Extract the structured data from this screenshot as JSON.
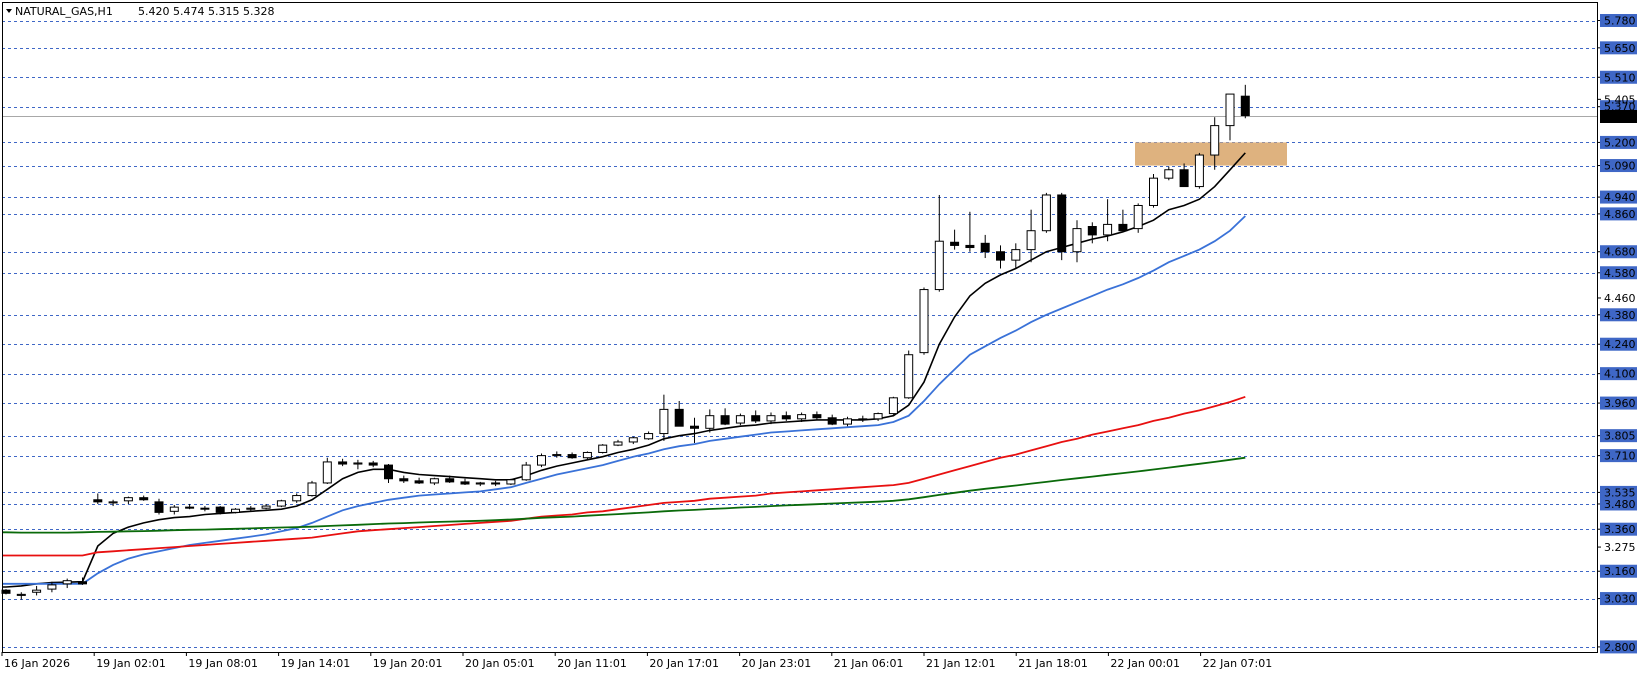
{
  "header": {
    "symbol": "NATURAL_GAS,H1",
    "ohlc": "5.420 5.474 5.315 5.328"
  },
  "colors": {
    "background": "#ffffff",
    "grid": "#3f67c6",
    "candle_up": "#ffffff",
    "candle_down": "#000000",
    "ma_fast": "#000000",
    "ma_mid": "#3a72d8",
    "ma_slow": "#e81010",
    "ma_long": "#0a6a0a",
    "zone": "#deb27f"
  },
  "chart_data": {
    "type": "candlestick",
    "y_axis": {
      "range": [
        2.73,
        5.83
      ],
      "grid_levels": [
        5.78,
        5.65,
        5.51,
        5.37,
        5.2,
        5.09,
        4.94,
        4.86,
        4.68,
        4.58,
        4.38,
        4.24,
        4.1,
        3.96,
        3.805,
        3.71,
        3.535,
        3.48,
        3.36,
        3.16,
        3.03,
        2.8
      ],
      "boxed_labels": [
        "5.780",
        "5.650",
        "5.510",
        "5.370",
        "5.200",
        "5.090",
        "4.940",
        "4.860",
        "4.680",
        "4.580",
        "4.380",
        "4.240",
        "4.100",
        "3.960",
        "3.805",
        "3.710",
        "3.535",
        "3.480",
        "3.360",
        "3.160",
        "3.030",
        "2.800"
      ],
      "plain_labels": [
        "5.405",
        "4.460",
        "3.275"
      ],
      "current_price": 5.328,
      "current_price_label": "5.328"
    },
    "x_axis": {
      "labels": [
        "16 Jan 2026",
        "19 Jan 02:01",
        "19 Jan 08:01",
        "19 Jan 14:01",
        "19 Jan 20:01",
        "20 Jan 05:01",
        "20 Jan 11:01",
        "20 Jan 17:01",
        "20 Jan 23:01",
        "21 Jan 06:01",
        "21 Jan 12:01",
        "21 Jan 18:01",
        "22 Jan 00:01",
        "22 Jan 07:01"
      ]
    },
    "candles": [
      [
        3.07,
        3.075,
        3.05,
        3.055
      ],
      [
        3.045,
        3.06,
        3.025,
        3.05
      ],
      [
        3.06,
        3.09,
        3.045,
        3.07
      ],
      [
        3.075,
        3.11,
        3.06,
        3.095
      ],
      [
        3.1,
        3.125,
        3.08,
        3.115
      ],
      [
        3.11,
        3.13,
        3.095,
        3.1
      ],
      [
        3.5,
        3.53,
        3.48,
        3.49
      ],
      [
        3.485,
        3.5,
        3.47,
        3.49
      ],
      [
        3.495,
        3.515,
        3.48,
        3.51
      ],
      [
        3.51,
        3.52,
        3.495,
        3.5
      ],
      [
        3.49,
        3.505,
        3.43,
        3.44
      ],
      [
        3.445,
        3.475,
        3.43,
        3.465
      ],
      [
        3.465,
        3.48,
        3.455,
        3.46
      ],
      [
        3.46,
        3.47,
        3.445,
        3.455
      ],
      [
        3.465,
        3.47,
        3.43,
        3.44
      ],
      [
        3.44,
        3.46,
        3.435,
        3.455
      ],
      [
        3.455,
        3.47,
        3.445,
        3.46
      ],
      [
        3.46,
        3.48,
        3.455,
        3.47
      ],
      [
        3.47,
        3.5,
        3.465,
        3.495
      ],
      [
        3.495,
        3.53,
        3.485,
        3.52
      ],
      [
        3.52,
        3.59,
        3.515,
        3.58
      ],
      [
        3.58,
        3.7,
        3.575,
        3.68
      ],
      [
        3.68,
        3.695,
        3.66,
        3.67
      ],
      [
        3.67,
        3.69,
        3.645,
        3.675
      ],
      [
        3.675,
        3.685,
        3.655,
        3.665
      ],
      [
        3.665,
        3.67,
        3.58,
        3.6
      ],
      [
        3.6,
        3.615,
        3.58,
        3.59
      ],
      [
        3.59,
        3.605,
        3.575,
        3.58
      ],
      [
        3.58,
        3.605,
        3.57,
        3.6
      ],
      [
        3.6,
        3.615,
        3.58,
        3.585
      ],
      [
        3.585,
        3.6,
        3.57,
        3.575
      ],
      [
        3.575,
        3.585,
        3.565,
        3.58
      ],
      [
        3.58,
        3.59,
        3.565,
        3.575
      ],
      [
        3.575,
        3.6,
        3.57,
        3.595
      ],
      [
        3.595,
        3.68,
        3.59,
        3.665
      ],
      [
        3.665,
        3.72,
        3.655,
        3.71
      ],
      [
        3.71,
        3.73,
        3.7,
        3.715
      ],
      [
        3.715,
        3.725,
        3.695,
        3.7
      ],
      [
        3.7,
        3.73,
        3.69,
        3.725
      ],
      [
        3.725,
        3.765,
        3.72,
        3.76
      ],
      [
        3.76,
        3.785,
        3.755,
        3.775
      ],
      [
        3.775,
        3.8,
        3.765,
        3.795
      ],
      [
        3.79,
        3.825,
        3.785,
        3.815
      ],
      [
        3.815,
        4.0,
        3.78,
        3.93
      ],
      [
        3.93,
        3.97,
        3.87,
        3.85
      ],
      [
        3.85,
        3.89,
        3.77,
        3.84
      ],
      [
        3.84,
        3.93,
        3.82,
        3.9
      ],
      [
        3.9,
        3.935,
        3.855,
        3.86
      ],
      [
        3.865,
        3.91,
        3.855,
        3.9
      ],
      [
        3.9,
        3.925,
        3.865,
        3.875
      ],
      [
        3.875,
        3.915,
        3.86,
        3.9
      ],
      [
        3.9,
        3.92,
        3.875,
        3.885
      ],
      [
        3.885,
        3.915,
        3.87,
        3.905
      ],
      [
        3.905,
        3.92,
        3.88,
        3.89
      ],
      [
        3.89,
        3.905,
        3.855,
        3.86
      ],
      [
        3.86,
        3.895,
        3.85,
        3.885
      ],
      [
        3.885,
        3.9,
        3.87,
        3.885
      ],
      [
        3.885,
        3.915,
        3.875,
        3.91
      ],
      [
        3.91,
        3.99,
        3.905,
        3.985
      ],
      [
        3.985,
        4.21,
        3.98,
        4.19
      ],
      [
        4.2,
        4.51,
        4.19,
        4.5
      ],
      [
        4.5,
        4.95,
        4.49,
        4.73
      ],
      [
        4.725,
        4.785,
        4.69,
        4.71
      ],
      [
        4.71,
        4.87,
        4.68,
        4.7
      ],
      [
        4.72,
        4.76,
        4.65,
        4.68
      ],
      [
        4.68,
        4.71,
        4.6,
        4.64
      ],
      [
        4.64,
        4.72,
        4.6,
        4.69
      ],
      [
        4.69,
        4.88,
        4.63,
        4.78
      ],
      [
        4.78,
        4.96,
        4.77,
        4.95
      ],
      [
        4.95,
        4.96,
        4.64,
        4.68
      ],
      [
        4.68,
        4.83,
        4.63,
        4.79
      ],
      [
        4.8,
        4.82,
        4.72,
        4.76
      ],
      [
        4.76,
        4.93,
        4.73,
        4.81
      ],
      [
        4.81,
        4.88,
        4.78,
        4.78
      ],
      [
        4.79,
        4.91,
        4.77,
        4.9
      ],
      [
        4.9,
        5.05,
        4.89,
        5.03
      ],
      [
        5.03,
        5.085,
        5.02,
        5.07
      ],
      [
        5.07,
        5.1,
        5.0,
        4.99
      ],
      [
        4.99,
        5.15,
        4.98,
        5.14
      ],
      [
        5.14,
        5.32,
        5.07,
        5.28
      ],
      [
        5.28,
        5.43,
        5.21,
        5.43
      ],
      [
        5.42,
        5.474,
        5.315,
        5.328
      ]
    ],
    "moving_averages": [
      {
        "color": "#000000",
        "values": [
          3.085,
          3.09,
          3.1,
          3.106,
          3.108,
          3.11,
          3.28,
          3.34,
          3.37,
          3.39,
          3.405,
          3.415,
          3.42,
          3.43,
          3.435,
          3.44,
          3.445,
          3.45,
          3.455,
          3.47,
          3.5,
          3.55,
          3.6,
          3.63,
          3.645,
          3.645,
          3.63,
          3.62,
          3.615,
          3.61,
          3.605,
          3.6,
          3.595,
          3.595,
          3.615,
          3.64,
          3.66,
          3.675,
          3.69,
          3.705,
          3.725,
          3.74,
          3.76,
          3.79,
          3.805,
          3.815,
          3.83,
          3.84,
          3.85,
          3.855,
          3.865,
          3.87,
          3.875,
          3.88,
          3.88,
          3.88,
          3.88,
          3.885,
          3.9,
          3.95,
          4.06,
          4.24,
          4.37,
          4.47,
          4.53,
          4.57,
          4.6,
          4.64,
          4.68,
          4.7,
          4.72,
          4.74,
          4.755,
          4.775,
          4.8,
          4.83,
          4.88,
          4.9,
          4.93,
          4.99,
          5.07,
          5.15
        ]
      },
      {
        "color": "#3a72d8",
        "values": [
          3.1,
          3.1,
          3.1,
          3.1,
          3.1,
          3.1,
          3.15,
          3.19,
          3.22,
          3.24,
          3.255,
          3.27,
          3.285,
          3.295,
          3.305,
          3.315,
          3.325,
          3.335,
          3.35,
          3.365,
          3.39,
          3.42,
          3.45,
          3.47,
          3.485,
          3.5,
          3.51,
          3.52,
          3.525,
          3.53,
          3.535,
          3.54,
          3.55,
          3.56,
          3.58,
          3.6,
          3.62,
          3.635,
          3.65,
          3.665,
          3.685,
          3.705,
          3.72,
          3.74,
          3.755,
          3.765,
          3.78,
          3.79,
          3.8,
          3.81,
          3.82,
          3.825,
          3.83,
          3.835,
          3.84,
          3.845,
          3.85,
          3.855,
          3.87,
          3.9,
          3.97,
          4.05,
          4.12,
          4.19,
          4.23,
          4.27,
          4.305,
          4.345,
          4.38,
          4.41,
          4.44,
          4.47,
          4.5,
          4.525,
          4.555,
          4.59,
          4.63,
          4.66,
          4.69,
          4.73,
          4.78,
          4.85
        ]
      },
      {
        "color": "#e81010",
        "values": [
          3.235,
          3.235,
          3.235,
          3.235,
          3.235,
          3.235,
          3.25,
          3.255,
          3.26,
          3.265,
          3.27,
          3.275,
          3.28,
          3.285,
          3.29,
          3.295,
          3.3,
          3.305,
          3.31,
          3.315,
          3.32,
          3.33,
          3.34,
          3.35,
          3.355,
          3.36,
          3.365,
          3.37,
          3.375,
          3.38,
          3.385,
          3.39,
          3.395,
          3.4,
          3.41,
          3.42,
          3.425,
          3.43,
          3.44,
          3.445,
          3.455,
          3.465,
          3.475,
          3.485,
          3.49,
          3.495,
          3.505,
          3.51,
          3.515,
          3.52,
          3.53,
          3.535,
          3.54,
          3.545,
          3.55,
          3.555,
          3.56,
          3.565,
          3.57,
          3.58,
          3.6,
          3.62,
          3.64,
          3.66,
          3.68,
          3.7,
          3.715,
          3.735,
          3.755,
          3.775,
          3.79,
          3.81,
          3.825,
          3.84,
          3.855,
          3.875,
          3.89,
          3.91,
          3.925,
          3.945,
          3.965,
          3.99
        ]
      },
      {
        "color": "#0a6a0a",
        "values": [
          3.345,
          3.344,
          3.344,
          3.344,
          3.344,
          3.345,
          3.347,
          3.348,
          3.35,
          3.351,
          3.353,
          3.355,
          3.357,
          3.358,
          3.36,
          3.362,
          3.364,
          3.366,
          3.368,
          3.37,
          3.372,
          3.375,
          3.378,
          3.381,
          3.384,
          3.387,
          3.389,
          3.392,
          3.394,
          3.396,
          3.398,
          3.4,
          3.403,
          3.406,
          3.41,
          3.414,
          3.417,
          3.42,
          3.424,
          3.428,
          3.432,
          3.436,
          3.44,
          3.445,
          3.449,
          3.452,
          3.456,
          3.459,
          3.463,
          3.466,
          3.47,
          3.473,
          3.476,
          3.479,
          3.482,
          3.485,
          3.488,
          3.491,
          3.495,
          3.502,
          3.512,
          3.523,
          3.533,
          3.543,
          3.552,
          3.56,
          3.568,
          3.577,
          3.585,
          3.594,
          3.602,
          3.61,
          3.619,
          3.627,
          3.635,
          3.644,
          3.653,
          3.662,
          3.671,
          3.68,
          3.69,
          3.7
        ]
      }
    ],
    "zone": {
      "price_top": 5.2,
      "price_bottom": 5.09,
      "color": "#deb27f"
    }
  }
}
